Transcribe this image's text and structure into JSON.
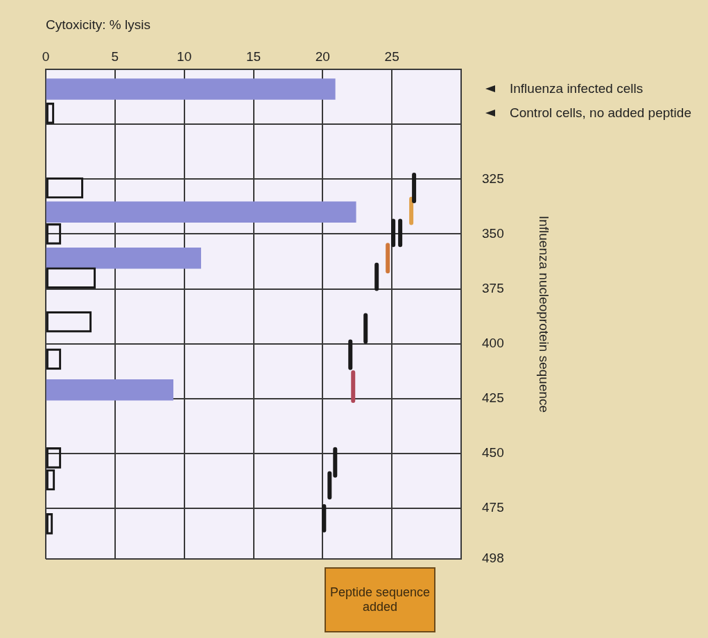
{
  "chart_data": {
    "type": "bar",
    "orientation": "horizontal",
    "xlabel": "Cytoxicity: % lysis",
    "ylabel": "Influenza nucleoprotein sequence",
    "xlim": [
      0,
      30
    ],
    "xticks": [
      0,
      5,
      10,
      15,
      20,
      25,
      {
        "value": 30,
        "label": null
      }
    ],
    "ylim": [
      498,
      275
    ],
    "yticks": [
      {
        "value": 300,
        "label": null
      },
      325,
      350,
      375,
      400,
      425,
      450,
      475,
      498
    ],
    "grid": true,
    "series": [
      {
        "x": [
          284,
          295,
          329,
          340,
          350,
          361,
          370,
          390,
          407,
          421,
          452,
          462,
          482
        ],
        "values": [
          20.9,
          0.6,
          2.7,
          22.4,
          1.1,
          11.2,
          3.6,
          3.3,
          1.1,
          9.2,
          1.1,
          0.65,
          0.5
        ],
        "colors": [
          "#8c8ed6",
          "#1a1a1a",
          "#1a1a1a",
          "#8c8ed6",
          "#1a1a1a",
          "#8c8ed6",
          "#1a1a1a",
          "#1a1a1a",
          "#1a1a1a",
          "#8c8ed6",
          "#1a1a1a",
          "#1a1a1a",
          "#1a1a1a"
        ]
      },
      {
        "type": "line",
        "color": "#1a1a1a",
        "x": [
          323,
          335
        ],
        "values": [
          26.6,
          26.6
        ]
      },
      {
        "type": "line",
        "color": "#e0a048",
        "x": [
          334,
          345
        ],
        "values": [
          26.4,
          26.4
        ]
      },
      {
        "type": "line",
        "color": "#1a1a1a",
        "x": [
          344,
          355
        ],
        "values": [
          25.1,
          25.1
        ]
      },
      {
        "type": "line",
        "color": "#1a1a1a",
        "x": [
          344,
          355
        ],
        "values": [
          25.6,
          25.6
        ]
      },
      {
        "type": "line",
        "color": "#d0783a",
        "x": [
          355,
          367
        ],
        "values": [
          24.7,
          24.7
        ]
      },
      {
        "type": "line",
        "color": "#1a1a1a",
        "x": [
          364,
          375
        ],
        "values": [
          23.9,
          23.9
        ]
      },
      {
        "type": "line",
        "color": "#1a1a1a",
        "x": [
          387,
          399
        ],
        "values": [
          23.1,
          23.1
        ]
      },
      {
        "type": "line",
        "color": "#1a1a1a",
        "x": [
          399,
          411
        ],
        "values": [
          22,
          22
        ]
      },
      {
        "type": "line",
        "color": "#b04858",
        "x": [
          413,
          426
        ],
        "values": [
          22.2,
          22.2
        ]
      },
      {
        "type": "line",
        "color": "#1a1a1a",
        "x": [
          448,
          460
        ],
        "values": [
          20.9,
          20.9
        ]
      },
      {
        "type": "line",
        "color": "#1a1a1a",
        "x": [
          459,
          470
        ],
        "values": [
          20.5,
          20.5
        ]
      },
      {
        "type": "line",
        "color": "#1a1a1a",
        "x": [
          474,
          485
        ],
        "values": [
          20.1,
          20.1
        ]
      }
    ],
    "annotations": [
      "Influenza infected cells",
      "Control cells, no added peptide",
      "Peptide sequence added"
    ]
  }
}
